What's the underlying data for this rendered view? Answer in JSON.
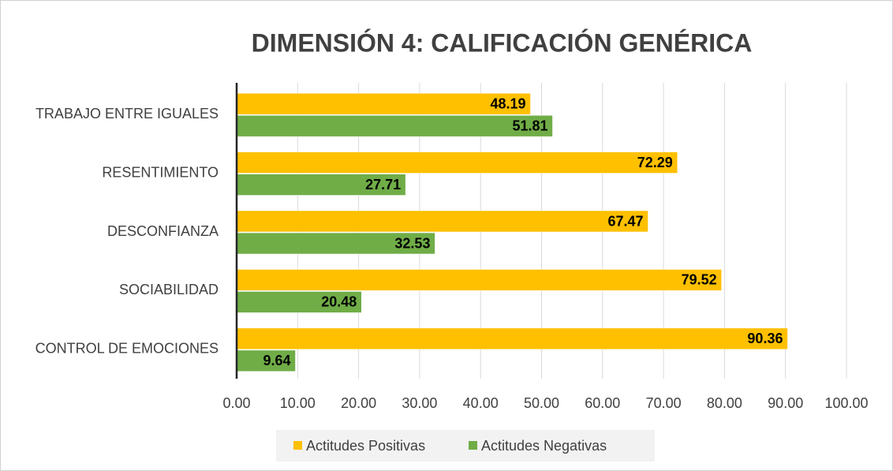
{
  "chart_data": {
    "type": "bar",
    "orientation": "horizontal",
    "title": "DIMENSIÓN 4: CALIFICACIÓN GENÉRICA",
    "categories": [
      "TRABAJO ENTRE IGUALES",
      "RESENTIMIENTO",
      "DESCONFIANZA",
      "SOCIABILIDAD",
      "CONTROL DE EMOCIONES"
    ],
    "series": [
      {
        "name": "Actitudes Positivas",
        "color": "#FFC000",
        "values": [
          48.19,
          72.29,
          67.47,
          79.52,
          90.36
        ]
      },
      {
        "name": "Actitudes Negativas",
        "color": "#70AD47",
        "values": [
          51.81,
          27.71,
          32.53,
          20.48,
          9.64
        ]
      }
    ],
    "xlim": [
      0,
      100
    ],
    "xticks": [
      {
        "value": 0,
        "label": "0.00"
      },
      {
        "value": 10,
        "label": "10.00"
      },
      {
        "value": 20,
        "label": "20.00"
      },
      {
        "value": 30,
        "label": "30.00"
      },
      {
        "value": 40,
        "label": "40.00"
      },
      {
        "value": 50,
        "label": "50.00"
      },
      {
        "value": 60,
        "label": "60.00"
      },
      {
        "value": 70,
        "label": "70.00"
      },
      {
        "value": 80,
        "label": "80.00"
      },
      {
        "value": 90,
        "label": "90.00"
      },
      {
        "value": 100,
        "label": "100.00"
      }
    ],
    "grid": true,
    "legend": "bottom"
  }
}
